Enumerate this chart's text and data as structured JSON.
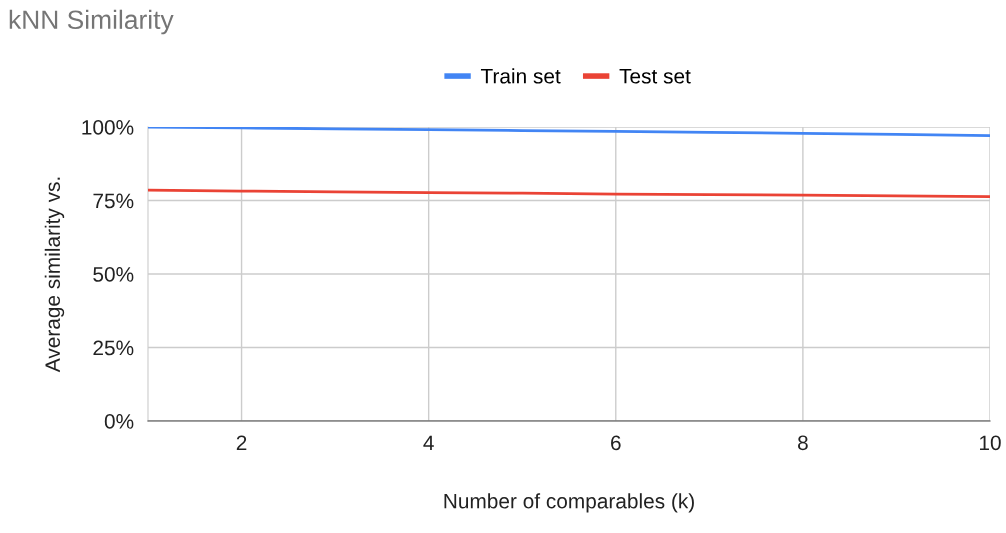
{
  "chart_data": {
    "type": "line",
    "title": "kNN Similarity",
    "xlabel": "Number of comparables (k)",
    "ylabel": "Average similarity vs.",
    "x": [
      1,
      2,
      3,
      4,
      5,
      6,
      7,
      8,
      9,
      10
    ],
    "series": [
      {
        "name": "Train set",
        "color": "#4285f4",
        "values": [
          100,
          99.7,
          99.4,
          99.1,
          98.8,
          98.5,
          98.2,
          97.8,
          97.5,
          97.1
        ]
      },
      {
        "name": "Test set",
        "color": "#ea4335",
        "values": [
          78.5,
          78.2,
          77.9,
          77.7,
          77.5,
          77.2,
          77.0,
          76.8,
          76.6,
          76.3
        ]
      }
    ],
    "xlim": [
      1,
      10
    ],
    "xticks": [
      2,
      4,
      6,
      8,
      10
    ],
    "ylim": [
      0,
      100
    ],
    "yticks": [
      {
        "value": 0,
        "label": "0%"
      },
      {
        "value": 25,
        "label": "25%"
      },
      {
        "value": 50,
        "label": "50%"
      },
      {
        "value": 75,
        "label": "75%"
      },
      {
        "value": 100,
        "label": "100%"
      }
    ],
    "grid": true,
    "legend": "top"
  }
}
